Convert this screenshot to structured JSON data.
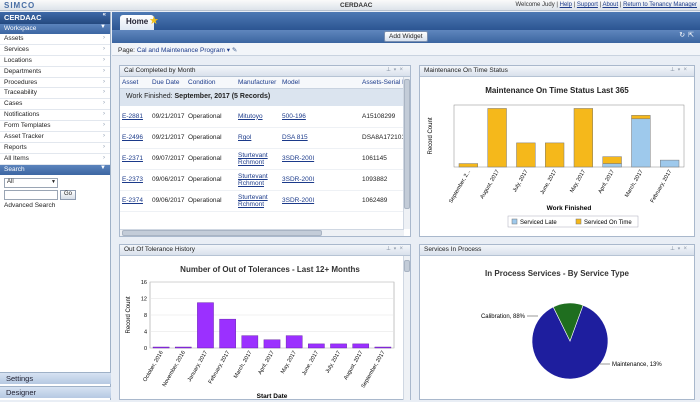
{
  "topbar": {
    "logo": "SIMCO",
    "org": "CERDAAC",
    "welcome": "Welcome Judy",
    "links": [
      "Help",
      "Support",
      "About",
      "Return to Tenancy Manager"
    ]
  },
  "sidebar": {
    "title": "CERDAAC",
    "workspace": "Workspace",
    "items": [
      {
        "label": "Assets"
      },
      {
        "label": "Services"
      },
      {
        "label": "Locations"
      },
      {
        "label": "Departments"
      },
      {
        "label": "Procedures"
      },
      {
        "label": "Traceability"
      },
      {
        "label": "Cases"
      },
      {
        "label": "Notifications"
      },
      {
        "label": "Form Templates"
      },
      {
        "label": "Asset Tracker"
      },
      {
        "label": "Reports"
      },
      {
        "label": "All Items"
      }
    ],
    "search": {
      "title": "Search",
      "select_value": "All",
      "go": "Go",
      "advanced": "Advanced Search"
    },
    "settings": "Settings",
    "designer": "Designer"
  },
  "tabs": {
    "home": "Home"
  },
  "toolbar": {
    "add_widget": "Add Widget"
  },
  "pagebar": {
    "label": "Page:",
    "value": "Cal and Maintenance Program"
  },
  "cal_panel": {
    "title": "Cal Completed by Month",
    "columns": [
      "Asset",
      "Due Date",
      "Condition",
      "Manufacturer",
      "Model",
      "Assets-Serial N"
    ],
    "group_prefix": "Work Finished:",
    "group_value": "September, 2017 (5 Records)",
    "rows": [
      {
        "asset": "E-2881",
        "due": "09/21/2017",
        "condition": "Operational",
        "mfr": "Mitutoyo",
        "model": "500-196",
        "serial": "A15108299"
      },
      {
        "asset": "E-2496",
        "due": "09/21/2017",
        "condition": "Operational",
        "mfr": "Rgol",
        "model": "DSA 815",
        "serial": "DSA8A172101"
      },
      {
        "asset": "E-2371",
        "due": "09/07/2017",
        "condition": "Operational",
        "mfr": "Sturtevant Rchmont",
        "model": "3SDR-200I",
        "serial": "1061145"
      },
      {
        "asset": "E-2373",
        "due": "09/06/2017",
        "condition": "Operational",
        "mfr": "Sturtevant Rchmont",
        "model": "3SDR-200I",
        "serial": "1093882"
      },
      {
        "asset": "E-2374",
        "due": "09/06/2017",
        "condition": "Operational",
        "mfr": "Sturtevant Rchmont",
        "model": "3SDR-200I",
        "serial": "1062489"
      }
    ]
  },
  "mots_panel": {
    "title": "Maintenance On Time Status"
  },
  "oot_panel": {
    "title": "Out Of Tolerance History"
  },
  "sip_panel": {
    "title": "Services In Process"
  },
  "chart_data": [
    {
      "type": "bar",
      "title": "Maintenance On Time Status Last 365",
      "xlabel": "Work Finished",
      "ylabel": "Record Count",
      "categories": [
        "September, 2...",
        "August, 2017",
        "July, 2017",
        "June, 2017",
        "May, 2017",
        "April, 2017",
        "March, 2017",
        "February, 2017"
      ],
      "series": [
        {
          "name": "Serviced Late",
          "color": "#9ec9ec",
          "values": [
            0,
            0,
            0,
            0,
            0,
            1,
            14,
            2
          ]
        },
        {
          "name": "Serviced On Time",
          "color": "#f5b81b",
          "values": [
            1,
            17,
            7,
            7,
            17,
            2,
            1,
            0
          ]
        }
      ],
      "ylim": [
        0,
        18
      ],
      "stacked": true,
      "legend": "bottom"
    },
    {
      "type": "bar",
      "title": "Number of Out of Tolerances - Last 12+ Months",
      "xlabel": "Start Date",
      "ylabel": "Record Count",
      "categories": [
        "October, 2016",
        "November, 2016",
        "January, 2017",
        "February, 2017",
        "March, 2017",
        "April, 2017",
        "May, 2017",
        "June, 2017",
        "July, 2017",
        "August, 2017",
        "September, 2017"
      ],
      "values": [
        0,
        0,
        11,
        7,
        3,
        2,
        3,
        1,
        1,
        1,
        0
      ],
      "color": "#9b30ff",
      "ylim": [
        0,
        16
      ],
      "yticks": [
        0,
        4,
        8,
        12,
        16
      ]
    },
    {
      "type": "pie",
      "title": "In Process Services - By Service Type",
      "slices": [
        {
          "label": "Calibration",
          "value": 88,
          "color": "#1e1e9e"
        },
        {
          "label": "Maintenance",
          "value": 13,
          "color": "#1f6e1f"
        }
      ]
    }
  ]
}
